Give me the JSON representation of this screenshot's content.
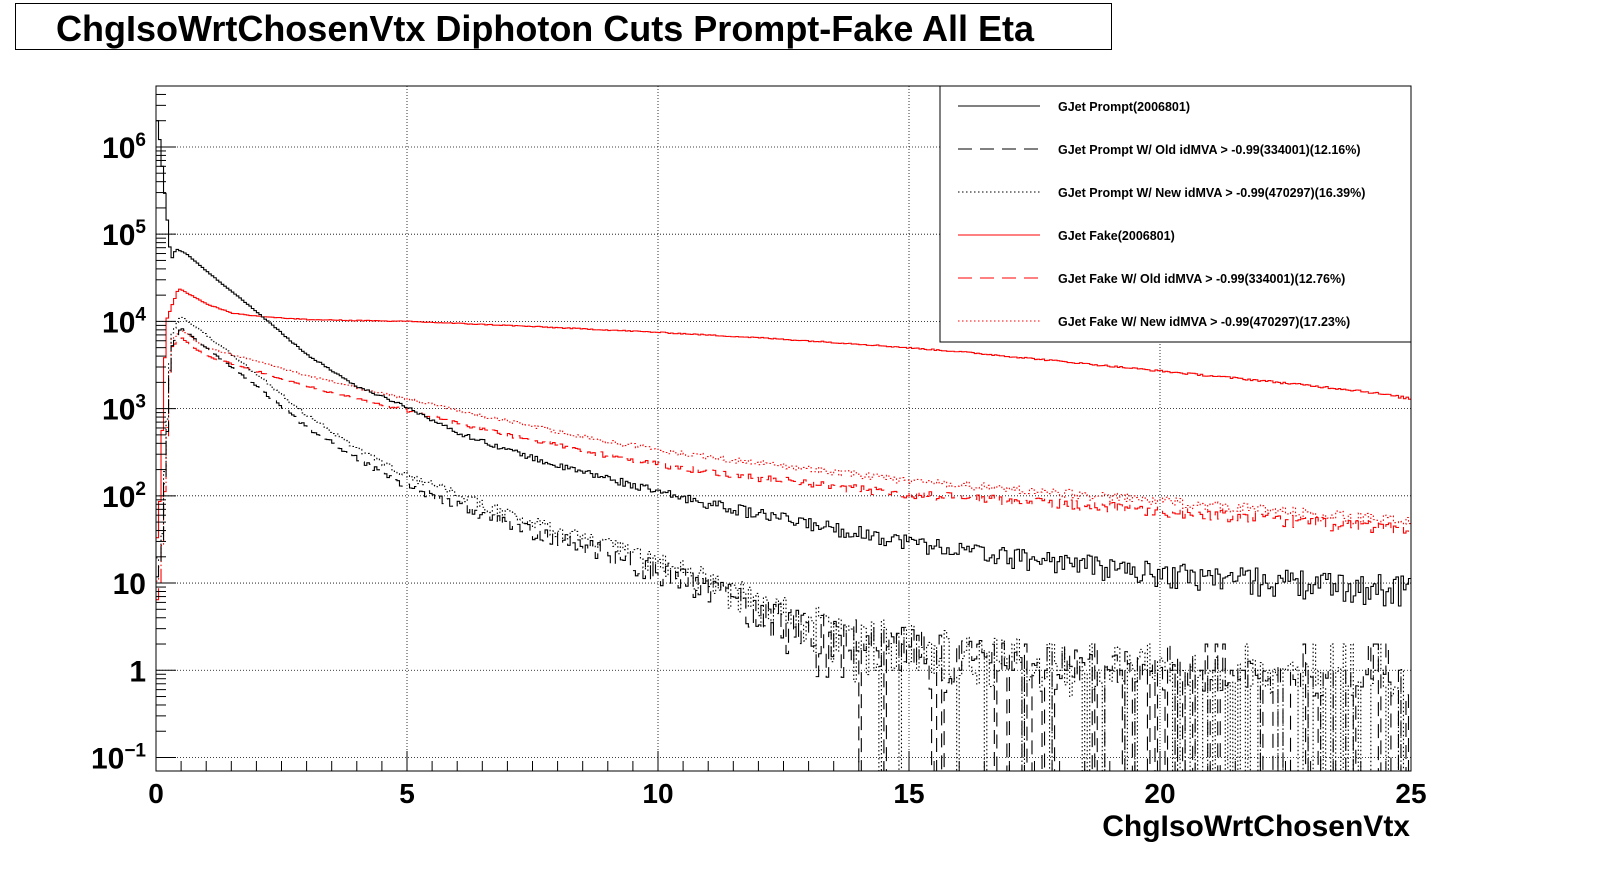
{
  "chart_data": {
    "type": "line",
    "title": "ChgIsoWrtChosenVtx Diphoton Cuts Prompt-Fake All Eta",
    "xlabel": "ChgIsoWrtChosenVtx",
    "ylabel": "",
    "xlim": [
      0,
      25
    ],
    "ylim": [
      0.07,
      5000000
    ],
    "yscale": "log",
    "grid": true,
    "legend_position": "top-right",
    "x_ticks": [
      {
        "value": 0,
        "label": "0"
      },
      {
        "value": 5,
        "label": "5"
      },
      {
        "value": 10,
        "label": "10"
      },
      {
        "value": 15,
        "label": "15"
      },
      {
        "value": 20,
        "label": "20"
      },
      {
        "value": 25,
        "label": "25"
      }
    ],
    "y_ticks": [
      {
        "value": 0.1,
        "base": "10",
        "exp": "−1"
      },
      {
        "value": 1,
        "base": "1",
        "exp": ""
      },
      {
        "value": 10,
        "base": "10",
        "exp": ""
      },
      {
        "value": 100,
        "base": "10",
        "exp": "2"
      },
      {
        "value": 1000,
        "base": "10",
        "exp": "3"
      },
      {
        "value": 10000,
        "base": "10",
        "exp": "4"
      },
      {
        "value": 100000,
        "base": "10",
        "exp": "5"
      },
      {
        "value": 1000000,
        "base": "10",
        "exp": "6"
      }
    ],
    "series": [
      {
        "name": "GJet Prompt(2006801)",
        "color": "#000000",
        "dash": "solid",
        "points": [
          [
            0.04,
            2000000
          ],
          [
            0.3,
            50000
          ],
          [
            0.4,
            68000
          ],
          [
            0.6,
            60000
          ],
          [
            1,
            38000
          ],
          [
            2,
            13000
          ],
          [
            3,
            4200
          ],
          [
            4,
            1800
          ],
          [
            5,
            1050
          ],
          [
            6,
            530
          ],
          [
            7,
            340
          ],
          [
            8,
            220
          ],
          [
            9,
            160
          ],
          [
            10,
            110
          ],
          [
            11,
            82
          ],
          [
            12,
            62
          ],
          [
            13,
            48
          ],
          [
            14,
            38
          ],
          [
            15,
            30
          ],
          [
            16,
            24
          ],
          [
            17,
            20
          ],
          [
            18,
            18
          ],
          [
            19,
            15
          ],
          [
            20,
            13
          ],
          [
            21,
            12
          ],
          [
            22,
            11
          ],
          [
            23,
            10
          ],
          [
            24,
            9
          ],
          [
            25,
            9
          ]
        ]
      },
      {
        "name": "GJet Prompt W/ Old idMVA > -0.99(334001)(12.16%)",
        "color": "#000000",
        "dash": "long",
        "points": [
          [
            0.1,
            15
          ],
          [
            0.3,
            5000
          ],
          [
            0.5,
            8500
          ],
          [
            1,
            5000
          ],
          [
            2,
            1800
          ],
          [
            3,
            620
          ],
          [
            4,
            270
          ],
          [
            5,
            130
          ],
          [
            6,
            80
          ],
          [
            7,
            48
          ],
          [
            8,
            32
          ],
          [
            9,
            22
          ],
          [
            10,
            14
          ],
          [
            11,
            9
          ],
          [
            12,
            5
          ],
          [
            13,
            3
          ],
          [
            14,
            2
          ],
          [
            15,
            1.6
          ],
          [
            16,
            1.2
          ],
          [
            17,
            1
          ],
          [
            18,
            0.8
          ],
          [
            19,
            0.7
          ],
          [
            20,
            0.6
          ],
          [
            21,
            0.5
          ],
          [
            22,
            0.5
          ],
          [
            23,
            0.4
          ],
          [
            24,
            0.4
          ],
          [
            25,
            0.3
          ]
        ]
      },
      {
        "name": "GJet Prompt W/ New idMVA > -0.99(470297)(16.39%)",
        "color": "#000000",
        "dash": "dotted",
        "points": [
          [
            0.1,
            20
          ],
          [
            0.3,
            7000
          ],
          [
            0.5,
            11500
          ],
          [
            1,
            7000
          ],
          [
            2,
            2500
          ],
          [
            3,
            850
          ],
          [
            4,
            350
          ],
          [
            5,
            170
          ],
          [
            6,
            105
          ],
          [
            7,
            62
          ],
          [
            8,
            40
          ],
          [
            9,
            27
          ],
          [
            10,
            17
          ],
          [
            11,
            11
          ],
          [
            12,
            6
          ],
          [
            13,
            3.5
          ],
          [
            14,
            2.3
          ],
          [
            15,
            1.8
          ],
          [
            16,
            1.4
          ],
          [
            17,
            1.1
          ],
          [
            18,
            0.9
          ],
          [
            19,
            0.8
          ],
          [
            20,
            0.7
          ],
          [
            21,
            0.6
          ],
          [
            22,
            0.5
          ],
          [
            23,
            0.5
          ],
          [
            24,
            0.4
          ],
          [
            25,
            0.4
          ]
        ]
      },
      {
        "name": "GJet Fake(2006801)",
        "color": "#ff0000",
        "dash": "solid",
        "points": [
          [
            0.05,
            30
          ],
          [
            0.2,
            10000
          ],
          [
            0.45,
            24000
          ],
          [
            1,
            16000
          ],
          [
            1.5,
            12500
          ],
          [
            2,
            11500
          ],
          [
            3,
            10500
          ],
          [
            5,
            10000
          ],
          [
            7,
            9000
          ],
          [
            10,
            7500
          ],
          [
            12,
            6500
          ],
          [
            14,
            5500
          ],
          [
            16,
            4500
          ],
          [
            18,
            3500
          ],
          [
            20,
            2700
          ],
          [
            22,
            2100
          ],
          [
            24,
            1600
          ],
          [
            25,
            1300
          ]
        ]
      },
      {
        "name": "GJet Fake W/ Old idMVA > -0.99(334001)(12.76%)",
        "color": "#ff0000",
        "dash": "long",
        "points": [
          [
            0.1,
            10
          ],
          [
            0.3,
            5000
          ],
          [
            0.5,
            6500
          ],
          [
            1,
            4000
          ],
          [
            2,
            2700
          ],
          [
            3,
            1800
          ],
          [
            4,
            1300
          ],
          [
            5,
            950
          ],
          [
            6,
            680
          ],
          [
            7,
            500
          ],
          [
            8,
            380
          ],
          [
            9,
            290
          ],
          [
            10,
            230
          ],
          [
            11,
            190
          ],
          [
            12,
            160
          ],
          [
            13,
            140
          ],
          [
            14,
            120
          ],
          [
            15,
            105
          ],
          [
            16,
            95
          ],
          [
            17,
            88
          ],
          [
            18,
            82
          ],
          [
            19,
            75
          ],
          [
            20,
            68
          ],
          [
            21,
            62
          ],
          [
            22,
            56
          ],
          [
            23,
            50
          ],
          [
            24,
            45
          ],
          [
            25,
            40
          ]
        ]
      },
      {
        "name": "GJet Fake W/ New idMVA > -0.99(470297)(17.23%)",
        "color": "#ff0000",
        "dash": "dotted",
        "points": [
          [
            0.1,
            12
          ],
          [
            0.3,
            6000
          ],
          [
            0.5,
            8000
          ],
          [
            1,
            5000
          ],
          [
            2,
            3500
          ],
          [
            3,
            2400
          ],
          [
            4,
            1750
          ],
          [
            5,
            1300
          ],
          [
            6,
            950
          ],
          [
            7,
            720
          ],
          [
            8,
            550
          ],
          [
            9,
            420
          ],
          [
            10,
            340
          ],
          [
            11,
            280
          ],
          [
            12,
            240
          ],
          [
            13,
            205
          ],
          [
            14,
            175
          ],
          [
            15,
            150
          ],
          [
            16,
            135
          ],
          [
            17,
            120
          ],
          [
            18,
            108
          ],
          [
            19,
            97
          ],
          [
            20,
            87
          ],
          [
            21,
            78
          ],
          [
            22,
            70
          ],
          [
            23,
            62
          ],
          [
            24,
            55
          ],
          [
            25,
            50
          ]
        ]
      }
    ]
  }
}
